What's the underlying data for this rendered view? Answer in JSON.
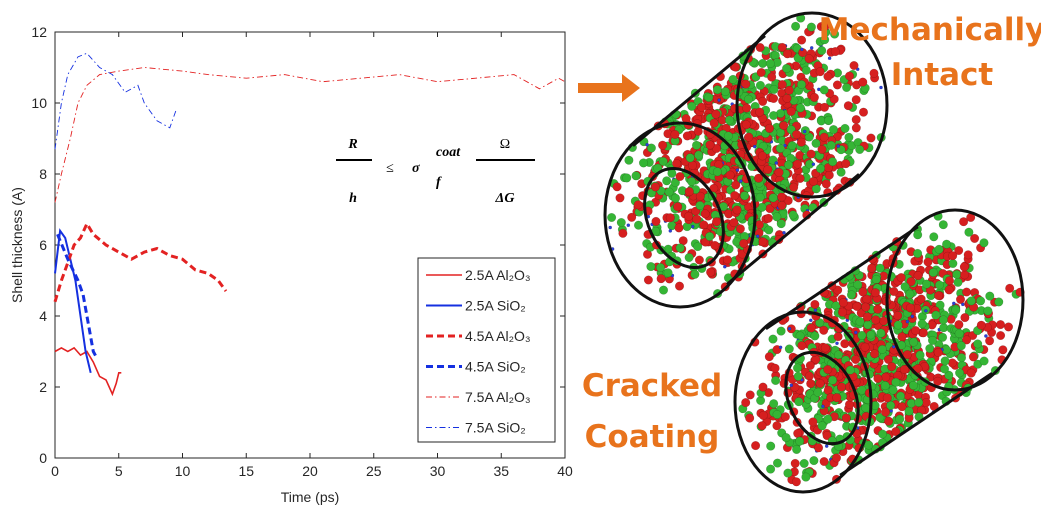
{
  "chart_data": {
    "type": "line",
    "xlabel": "Time (ps)",
    "ylabel": "Shell thickness (A)",
    "xlim": [
      0,
      40
    ],
    "xticks": [
      0,
      5,
      10,
      15,
      20,
      25,
      30,
      35,
      40
    ],
    "ylim": [
      0,
      12
    ],
    "yticks": [
      0,
      2,
      4,
      6,
      8,
      10,
      12
    ],
    "legend": "right",
    "series": [
      {
        "name": "2.5A Al₂O₃",
        "color": "#e32222",
        "style": "solid",
        "width": 1.6,
        "x": [
          0,
          0.5,
          1,
          1.5,
          2,
          2.5,
          3,
          3.5,
          4,
          4.5,
          4.8,
          5,
          5.2
        ],
        "values": [
          3.0,
          3.1,
          3.0,
          3.1,
          2.9,
          3.0,
          2.7,
          2.3,
          2.2,
          1.8,
          2.1,
          2.4,
          2.4
        ]
      },
      {
        "name": "2.5A SiO₂",
        "color": "#1530e0",
        "style": "solid",
        "width": 2,
        "x": [
          0,
          0.4,
          0.8,
          1.2,
          1.6,
          2,
          2.4,
          2.8
        ],
        "values": [
          5.2,
          6.4,
          6.2,
          5.6,
          5.0,
          4.0,
          3.0,
          2.4
        ]
      },
      {
        "name": "4.5A Al₂O₃",
        "color": "#e32222",
        "style": "dashed",
        "width": 3,
        "x": [
          0,
          0.5,
          1,
          1.5,
          2,
          2.5,
          3,
          4,
          5,
          6,
          7,
          8,
          9,
          10,
          11,
          12,
          12.8,
          13.4
        ],
        "values": [
          4.4,
          5.0,
          5.5,
          6.0,
          6.2,
          6.6,
          6.3,
          6.0,
          5.8,
          5.6,
          5.8,
          5.9,
          5.7,
          5.6,
          5.3,
          5.2,
          5.0,
          4.7
        ]
      },
      {
        "name": "4.5A SiO₂",
        "color": "#1530e0",
        "style": "dashed",
        "width": 3,
        "x": [
          0.2,
          1,
          1.8,
          2.2,
          2.6,
          3,
          3.3
        ],
        "values": [
          6.3,
          5.6,
          5.0,
          4.6,
          3.8,
          3.0,
          2.8
        ]
      },
      {
        "name": "7.5A Al₂O₃",
        "color": "#e32222",
        "style": "dashdot",
        "width": 0.9,
        "x": [
          0,
          0.5,
          1.2,
          1.8,
          2.5,
          3.5,
          5,
          7,
          10,
          12,
          15,
          18,
          21,
          24,
          27,
          30,
          33,
          36,
          38,
          39.5,
          40
        ],
        "values": [
          7.2,
          8.0,
          9.0,
          10.0,
          10.5,
          10.8,
          10.9,
          11.0,
          10.9,
          10.8,
          10.7,
          10.8,
          10.6,
          10.7,
          10.8,
          10.6,
          10.7,
          10.8,
          10.4,
          10.7,
          10.6
        ]
      },
      {
        "name": "7.5A SiO₂",
        "color": "#1530e0",
        "style": "dashdot",
        "width": 0.9,
        "x": [
          0,
          0.5,
          1,
          1.8,
          2.5,
          3.5,
          4.5,
          5.5,
          6.5,
          7,
          8,
          9,
          9.5
        ],
        "values": [
          8.7,
          10.0,
          10.8,
          11.3,
          11.4,
          11.0,
          10.8,
          10.3,
          10.5,
          10.0,
          9.5,
          9.3,
          9.8
        ]
      }
    ]
  },
  "equation": {
    "numerator1": "R",
    "denominator1": "h",
    "relation": "≤",
    "sigma": "σ",
    "subscript": "f",
    "superscript": "coat",
    "numerator2": "Ω",
    "denominator2": "ΔG"
  },
  "labels": [
    [
      "Mechanically",
      "Intact"
    ],
    [
      "Cracked",
      "Coating"
    ]
  ]
}
